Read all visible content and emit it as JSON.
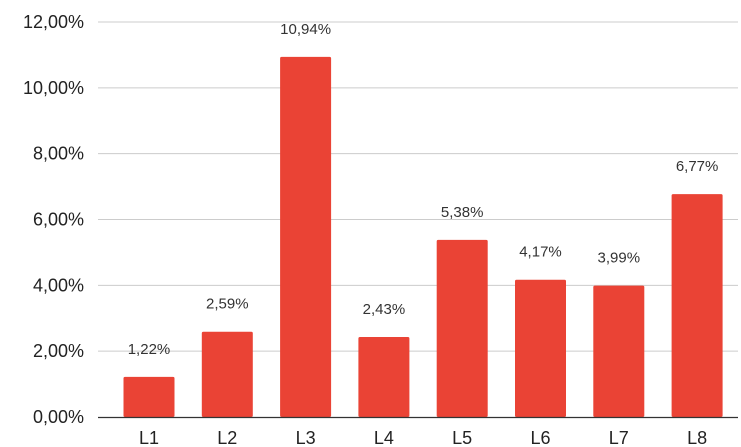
{
  "chart_data": {
    "type": "bar",
    "title": "",
    "xlabel": "",
    "ylabel": "",
    "categories": [
      "L1",
      "L2",
      "L3",
      "L4",
      "L5",
      "L6",
      "L7",
      "L8"
    ],
    "values": [
      1.22,
      2.59,
      10.94,
      2.43,
      5.38,
      4.17,
      3.99,
      6.77
    ],
    "value_labels": [
      "1,22%",
      "2,59%",
      "10,94%",
      "2,43%",
      "5,38%",
      "4,17%",
      "3,99%",
      "6,77%"
    ],
    "ylim": [
      0,
      12
    ],
    "yticks": [
      0,
      2,
      4,
      6,
      8,
      10,
      12
    ],
    "ytick_labels": [
      "0,00%",
      "2,00%",
      "4,00%",
      "6,00%",
      "8,00%",
      "10,00%",
      "12,00%"
    ],
    "grid": true,
    "legend": "none",
    "colors": {
      "bar": "#ea4335",
      "grid": "#cccccc",
      "axis": "#333333"
    }
  }
}
